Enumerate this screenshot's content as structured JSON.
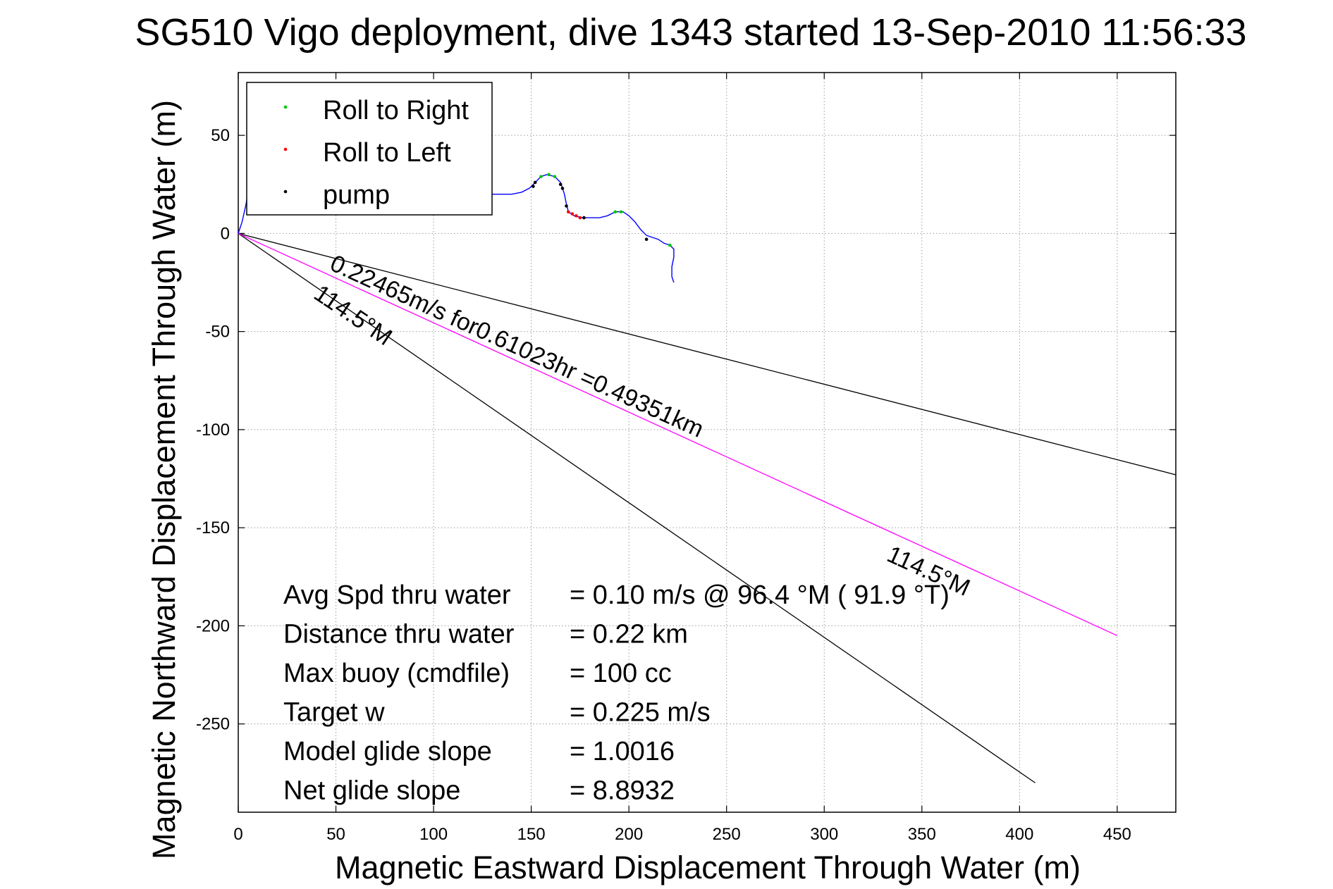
{
  "chart_data": {
    "type": "line",
    "title": "SG510 Vigo deployment, dive 1343 started 13-Sep-2010 11:56:33",
    "xlabel": "Magnetic Eastward Displacement Through Water (m)",
    "ylabel": "Magnetic Northward Displacement Through Water (m)",
    "xlim": [
      0,
      480
    ],
    "ylim": [
      -295,
      82
    ],
    "xticks": [
      0,
      50,
      100,
      150,
      200,
      250,
      300,
      350,
      400,
      450
    ],
    "yticks": [
      50,
      0,
      -50,
      -100,
      -150,
      -200,
      -250
    ],
    "xtick_labels": [
      "0",
      "50",
      "100",
      "150",
      "200",
      "250",
      "300",
      "350",
      "400",
      "450"
    ],
    "ytick_labels": [
      "50",
      "0",
      "-50",
      "-100",
      "-150",
      "-200",
      "-250"
    ],
    "grid": true,
    "legend_position": "top-left",
    "legend": [
      {
        "label": "Roll to Right",
        "color": "#00c800"
      },
      {
        "label": "Roll to Left",
        "color": "#ff0000"
      },
      {
        "label": "pump",
        "color": "#000000"
      }
    ],
    "series": [
      {
        "name": "track",
        "color": "#0000ff",
        "points": [
          [
            0,
            0
          ],
          [
            2,
            6
          ],
          [
            4,
            15
          ],
          [
            5,
            22
          ],
          [
            8,
            20
          ],
          [
            12,
            20
          ],
          [
            20,
            20
          ],
          [
            40,
            20
          ],
          [
            60,
            20
          ],
          [
            80,
            20
          ],
          [
            100,
            20
          ],
          [
            120,
            20
          ],
          [
            135,
            20
          ],
          [
            140,
            20
          ],
          [
            145,
            21
          ],
          [
            149,
            23
          ],
          [
            152,
            26
          ],
          [
            155,
            29
          ],
          [
            158,
            30
          ],
          [
            162,
            29
          ],
          [
            165,
            26
          ],
          [
            167,
            20
          ],
          [
            168,
            15
          ],
          [
            169,
            11
          ],
          [
            172,
            9
          ],
          [
            176,
            8
          ],
          [
            180,
            8
          ],
          [
            185,
            8
          ],
          [
            189,
            9
          ],
          [
            193,
            11
          ],
          [
            197,
            11
          ],
          [
            200,
            9
          ],
          [
            203,
            6
          ],
          [
            206,
            2
          ],
          [
            209,
            -1
          ],
          [
            212,
            -2
          ],
          [
            215,
            -3
          ],
          [
            218,
            -5
          ],
          [
            221,
            -6
          ],
          [
            223,
            -8
          ],
          [
            223,
            -12
          ],
          [
            222,
            -17
          ],
          [
            222,
            -22
          ],
          [
            223,
            -25
          ]
        ]
      }
    ],
    "markers": {
      "roll_right": [
        [
          155,
          29
        ],
        [
          159,
          30
        ],
        [
          162,
          29
        ],
        [
          193,
          11
        ],
        [
          196,
          11
        ],
        [
          221,
          -6
        ]
      ],
      "roll_left": [
        [
          169,
          11
        ],
        [
          171,
          10
        ],
        [
          173,
          9
        ],
        [
          175,
          8
        ]
      ],
      "pump": [
        [
          5,
          22
        ],
        [
          151,
          24
        ],
        [
          152,
          26
        ],
        [
          165,
          25
        ],
        [
          166,
          23
        ],
        [
          168,
          14
        ],
        [
          177,
          8
        ],
        [
          209,
          -3
        ]
      ]
    },
    "reference_lines": [
      {
        "from": [
          0,
          0
        ],
        "to": [
          480,
          -123
        ],
        "color": "#000000"
      },
      {
        "from": [
          0,
          0
        ],
        "to": [
          408,
          -280
        ],
        "color": "#000000"
      },
      {
        "from": [
          0,
          0
        ],
        "to": [
          450,
          -205
        ],
        "color": "#ff00ff"
      }
    ],
    "annotations": {
      "line_label": "0.22465m/s for0.61023hr =0.49351km",
      "heading_label_1": "114.5°M",
      "heading_label_2": "114.5°M"
    },
    "stats": [
      {
        "label": "Avg Spd thru water",
        "value": "=  0.10 m/s @  96.4 °M ( 91.9 °T)"
      },
      {
        "label": "Distance thru water",
        "value": "=  0.22 km"
      },
      {
        "label": "Max buoy (cmdfile)",
        "value": "= 100 cc"
      },
      {
        "label": "Target w",
        "value": "= 0.225 m/s"
      },
      {
        "label": "Model glide slope",
        "value": "= 1.0016"
      },
      {
        "label": "Net glide slope",
        "value": "= 8.8932"
      }
    ]
  }
}
